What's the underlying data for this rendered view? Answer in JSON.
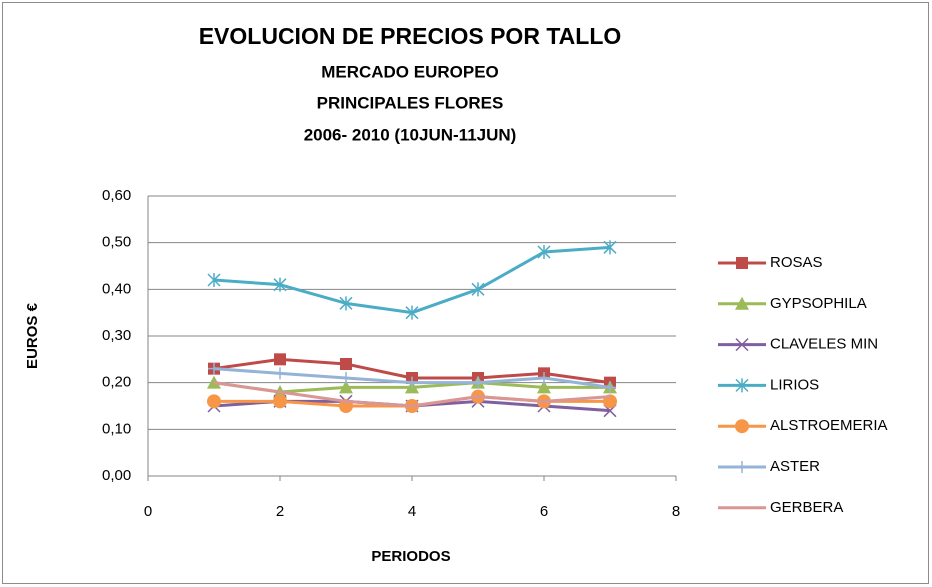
{
  "chart_data": {
    "type": "line",
    "title": "EVOLUCION DE PRECIOS POR TALLO",
    "subtitle": [
      "MERCADO EUROPEO",
      "PRINCIPALES FLORES",
      "2006- 2010 (10JUN-11JUN)"
    ],
    "xlabel": "PERIODOS",
    "ylabel": "EUROS €",
    "x": [
      1,
      2,
      3,
      4,
      5,
      6,
      7
    ],
    "xlim": [
      0,
      8
    ],
    "xticks": [
      0,
      2,
      4,
      6,
      8
    ],
    "ylim": [
      0,
      0.6
    ],
    "yticks": [
      {
        "value": 0,
        "label": "0,00"
      },
      {
        "value": 0.1,
        "label": "0,10"
      },
      {
        "value": 0.2,
        "label": "0,20"
      },
      {
        "value": 0.3,
        "label": "0,30"
      },
      {
        "value": 0.4,
        "label": "0,40"
      },
      {
        "value": 0.5,
        "label": "0,50"
      },
      {
        "value": 0.6,
        "label": "0,60"
      }
    ],
    "grid": true,
    "legend": "right",
    "series": [
      {
        "name": "ROSAS",
        "color": "#be4b48",
        "marker": "square",
        "values": [
          0.23,
          0.25,
          0.24,
          0.21,
          0.21,
          0.22,
          0.2
        ]
      },
      {
        "name": "GYPSOPHILA",
        "color": "#9bbb59",
        "marker": "triangle",
        "values": [
          0.2,
          0.18,
          0.19,
          0.19,
          0.2,
          0.19,
          0.19
        ]
      },
      {
        "name": "CLAVELES MIN",
        "color": "#7f5f9f",
        "marker": "x",
        "values": [
          0.15,
          0.16,
          0.16,
          0.15,
          0.16,
          0.15,
          0.14
        ]
      },
      {
        "name": "LIRIOS",
        "color": "#4bacc6",
        "marker": "star",
        "values": [
          0.42,
          0.41,
          0.37,
          0.35,
          0.4,
          0.48,
          0.49
        ]
      },
      {
        "name": "ALSTROEMERIA",
        "color": "#f79646",
        "marker": "circle",
        "values": [
          0.16,
          0.16,
          0.15,
          0.15,
          0.17,
          0.16,
          0.16
        ]
      },
      {
        "name": "ASTER",
        "color": "#95b3d7",
        "marker": "plus",
        "values": [
          0.23,
          0.22,
          0.21,
          0.2,
          0.2,
          0.21,
          0.19
        ]
      },
      {
        "name": "GERBERA",
        "color": "#d99694",
        "marker": "none",
        "values": [
          0.2,
          0.18,
          0.16,
          0.15,
          0.17,
          0.16,
          0.17
        ]
      }
    ]
  }
}
